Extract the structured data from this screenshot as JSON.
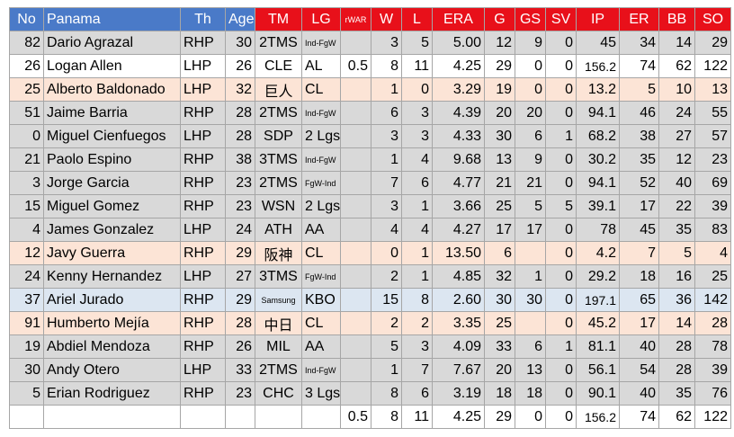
{
  "table": {
    "header": [
      "No",
      "Panama",
      "Th",
      "Age",
      "TM",
      "LG",
      "rWAR",
      "W",
      "L",
      "ERA",
      "G",
      "GS",
      "SV",
      "IP",
      "ER",
      "BB",
      "SO"
    ],
    "rows": [
      [
        82,
        "Dario Agrazal",
        "RHP",
        30,
        "2TMS",
        "Ind-FgW",
        null,
        3,
        5,
        "5.00",
        12,
        9,
        0,
        45,
        34,
        14,
        29
      ],
      [
        26,
        "Logan Allen",
        "LHP",
        26,
        "CLE",
        "AL",
        0.5,
        8,
        11,
        4.25,
        29,
        0,
        0,
        156.2,
        74,
        62,
        122
      ],
      [
        25,
        "Alberto Baldonado",
        "LHP",
        32,
        "巨人",
        "CL",
        null,
        1,
        0,
        3.29,
        19,
        0,
        0,
        13.2,
        5,
        10,
        13
      ],
      [
        51,
        "Jaime Barria",
        "RHP",
        28,
        "2TMS",
        "Ind-FgW",
        null,
        6,
        3,
        4.39,
        20,
        20,
        0,
        94.1,
        46,
        24,
        55
      ],
      [
        0,
        "Miguel Cienfuegos",
        "LHP",
        28,
        "SDP",
        "2 Lgs",
        null,
        3,
        3,
        4.33,
        30,
        6,
        1,
        68.2,
        38,
        27,
        57
      ],
      [
        21,
        "Paolo Espino",
        "RHP",
        38,
        "3TMS",
        "Ind-FgW",
        null,
        1,
        4,
        9.68,
        13,
        9,
        0,
        30.2,
        35,
        12,
        23
      ],
      [
        3,
        "Jorge Garcia",
        "RHP",
        23,
        "2TMS",
        "FgW-Ind",
        null,
        7,
        6,
        4.77,
        21,
        21,
        0,
        94.1,
        52,
        40,
        69
      ],
      [
        15,
        "Miguel Gomez",
        "RHP",
        23,
        "WSN",
        "2 Lgs",
        null,
        3,
        1,
        3.66,
        25,
        5,
        5,
        39.1,
        17,
        22,
        39
      ],
      [
        4,
        "James Gonzalez",
        "LHP",
        24,
        "ATH",
        "AA",
        null,
        4,
        4,
        4.27,
        17,
        17,
        0,
        78,
        45,
        35,
        83
      ],
      [
        12,
        "Javy Guerra",
        "RHP",
        29,
        "阪神",
        "CL",
        null,
        0,
        1,
        "13.50",
        6,
        null,
        0,
        4.2,
        7,
        5,
        4
      ],
      [
        24,
        "Kenny Hernandez",
        "LHP",
        27,
        "3TMS",
        "FgW-Ind",
        null,
        2,
        1,
        4.85,
        32,
        1,
        0,
        29.2,
        18,
        16,
        25
      ],
      [
        37,
        "Ariel Jurado",
        "RHP",
        29,
        "Samsung",
        "KBO",
        null,
        15,
        8,
        "2.60",
        30,
        30,
        0,
        197.1,
        65,
        36,
        142
      ],
      [
        91,
        "Humberto Mejía",
        "RHP",
        28,
        "中日",
        "CL",
        null,
        2,
        2,
        3.35,
        25,
        null,
        0,
        45.2,
        17,
        14,
        28
      ],
      [
        19,
        "Abdiel Mendoza",
        "RHP",
        26,
        "MIL",
        "AA",
        null,
        5,
        3,
        4.09,
        33,
        6,
        1,
        81.1,
        40,
        28,
        78
      ],
      [
        30,
        "Andy Otero",
        "LHP",
        33,
        "2TMS",
        "Ind-FgW",
        null,
        1,
        7,
        7.67,
        20,
        13,
        0,
        56.1,
        54,
        28,
        39
      ],
      [
        5,
        "Erian Rodriguez",
        "RHP",
        23,
        "CHC",
        "3 Lgs",
        null,
        8,
        6,
        3.19,
        18,
        18,
        0,
        90.1,
        40,
        35,
        76
      ],
      [
        null,
        null,
        null,
        null,
        null,
        null,
        0.5,
        8,
        11,
        4.25,
        29,
        0,
        0,
        156.2,
        74,
        62,
        122
      ]
    ]
  }
}
